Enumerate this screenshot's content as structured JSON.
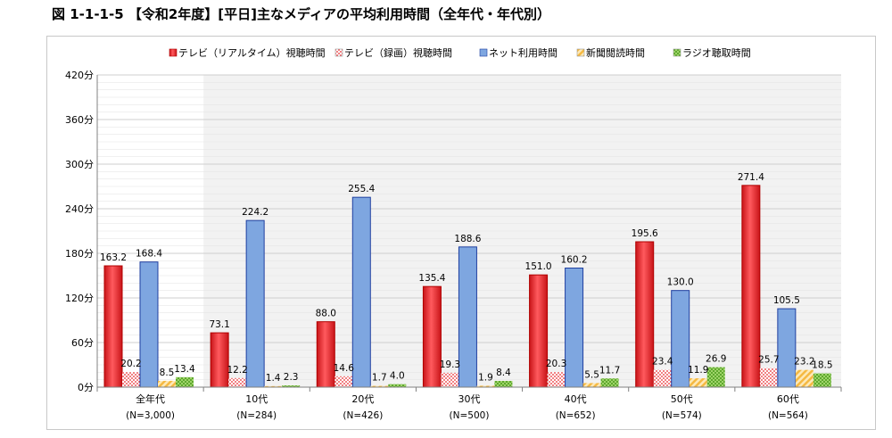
{
  "figure_title": "図 1-1-1-5 【令和2年度】[平日]主なメディアの平均利用時間（全年代・年代別）",
  "chart_data": {
    "type": "bar",
    "categories": [
      "全年代",
      "10代",
      "20代",
      "30代",
      "40代",
      "50代",
      "60代"
    ],
    "category_sublabels": [
      "(N=3,000)",
      "(N=284)",
      "(N=426)",
      "(N=500)",
      "(N=652)",
      "(N=574)",
      "(N=564)"
    ],
    "series": [
      {
        "name": "テレビ（リアルタイム）視聴時間",
        "values": [
          163.2,
          73.1,
          88.0,
          135.4,
          151.0,
          195.6,
          271.4
        ],
        "labels": [
          "163.2",
          "73.1",
          "88.0",
          "135.4",
          "151.0",
          "195.6",
          "271.4"
        ],
        "color": "#e8262a",
        "pattern": "gradient"
      },
      {
        "name": "テレビ（録画）視聴時間",
        "values": [
          20.2,
          12.2,
          14.6,
          19.3,
          20.3,
          23.4,
          25.7
        ],
        "labels": [
          "20.2",
          "12.2",
          "14.6",
          "19.3",
          "20.3",
          "23.4",
          "25.7"
        ],
        "color": "#e8262a",
        "pattern": "dots"
      },
      {
        "name": "ネット利用時間",
        "values": [
          168.4,
          224.2,
          255.4,
          188.6,
          160.2,
          130.0,
          105.5
        ],
        "labels": [
          "168.4",
          "224.2",
          "255.4",
          "188.6",
          "160.2",
          "130.0",
          "105.5"
        ],
        "color": "#7ea6e0",
        "pattern": "solid"
      },
      {
        "name": "新聞閲読時間",
        "values": [
          8.5,
          1.4,
          1.7,
          1.9,
          5.5,
          11.9,
          23.2
        ],
        "labels": [
          "8.5",
          "1.4",
          "1.7",
          "1.9",
          "5.5",
          "11.9",
          "23.2"
        ],
        "color": "#f5b942",
        "pattern": "stripes"
      },
      {
        "name": "ラジオ聴取時間",
        "values": [
          13.4,
          2.3,
          4.0,
          8.4,
          11.7,
          26.9,
          18.5
        ],
        "labels": [
          "13.4",
          "2.3",
          "4.0",
          "8.4",
          "11.7",
          "26.9",
          "18.5"
        ],
        "color": "#7dc242",
        "pattern": "checker"
      }
    ],
    "y_ticks": [
      "0分",
      "60分",
      "120分",
      "180分",
      "240分",
      "300分",
      "360分",
      "420分"
    ],
    "ylim": [
      0,
      420
    ],
    "xlabel": "",
    "ylabel": "",
    "grid": true,
    "legend_position": "top"
  }
}
